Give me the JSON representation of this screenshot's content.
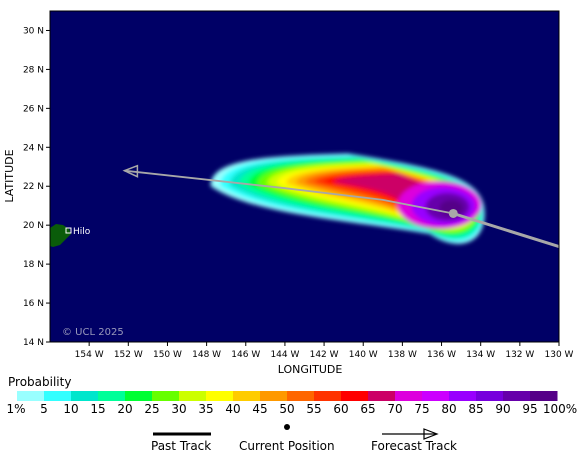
{
  "map": {
    "y_axis_label": "LATITUDE",
    "x_axis_label": "LONGITUDE",
    "lat_ticks": [
      "30 N",
      "28 N",
      "26 N",
      "24 N",
      "22 N",
      "20 N",
      "18 N",
      "16 N",
      "14 N"
    ],
    "lon_ticks": [
      "154 W",
      "152 W",
      "150 W",
      "148 W",
      "146 W",
      "144 W",
      "142 W",
      "140 W",
      "138 W",
      "136 W",
      "134 W",
      "132 W",
      "130 W"
    ],
    "lat_range": [
      14,
      31
    ],
    "lon_range": [
      -156,
      -130
    ],
    "ocean_color": "#000066",
    "land_color": "#0a5c0a",
    "track_color": "#a8a8a8",
    "city_label": "Hilo",
    "copyright": "© UCL 2025",
    "current_position": {
      "lon": -135.4,
      "lat": 20.6
    },
    "past_track": [
      [
        -135.4,
        20.6
      ],
      [
        -130,
        18.9
      ]
    ],
    "forecast_track": [
      [
        -135.4,
        20.6
      ],
      [
        -139,
        21.3
      ],
      [
        -144,
        21.9
      ],
      [
        -152.2,
        22.8
      ]
    ]
  },
  "legend": {
    "title": "Probability",
    "labels": [
      "1%",
      "5",
      "10",
      "15",
      "20",
      "25",
      "30",
      "35",
      "40",
      "45",
      "50",
      "55",
      "60",
      "65",
      "70",
      "75",
      "80",
      "85",
      "90",
      "95",
      "100%"
    ],
    "colors": [
      "#99ffff",
      "#33ffff",
      "#00e6cc",
      "#00ff99",
      "#00ff33",
      "#66ff00",
      "#ccff00",
      "#ffff00",
      "#ffcc00",
      "#ff9900",
      "#ff6600",
      "#ff3300",
      "#ff0000",
      "#cc0066",
      "#dd00dd",
      "#cc00ff",
      "#9900ff",
      "#7700dd",
      "#6600aa",
      "#550088"
    ]
  },
  "key": {
    "past": "Past Track",
    "current": "Current Position",
    "forecast": "Forecast Track"
  }
}
